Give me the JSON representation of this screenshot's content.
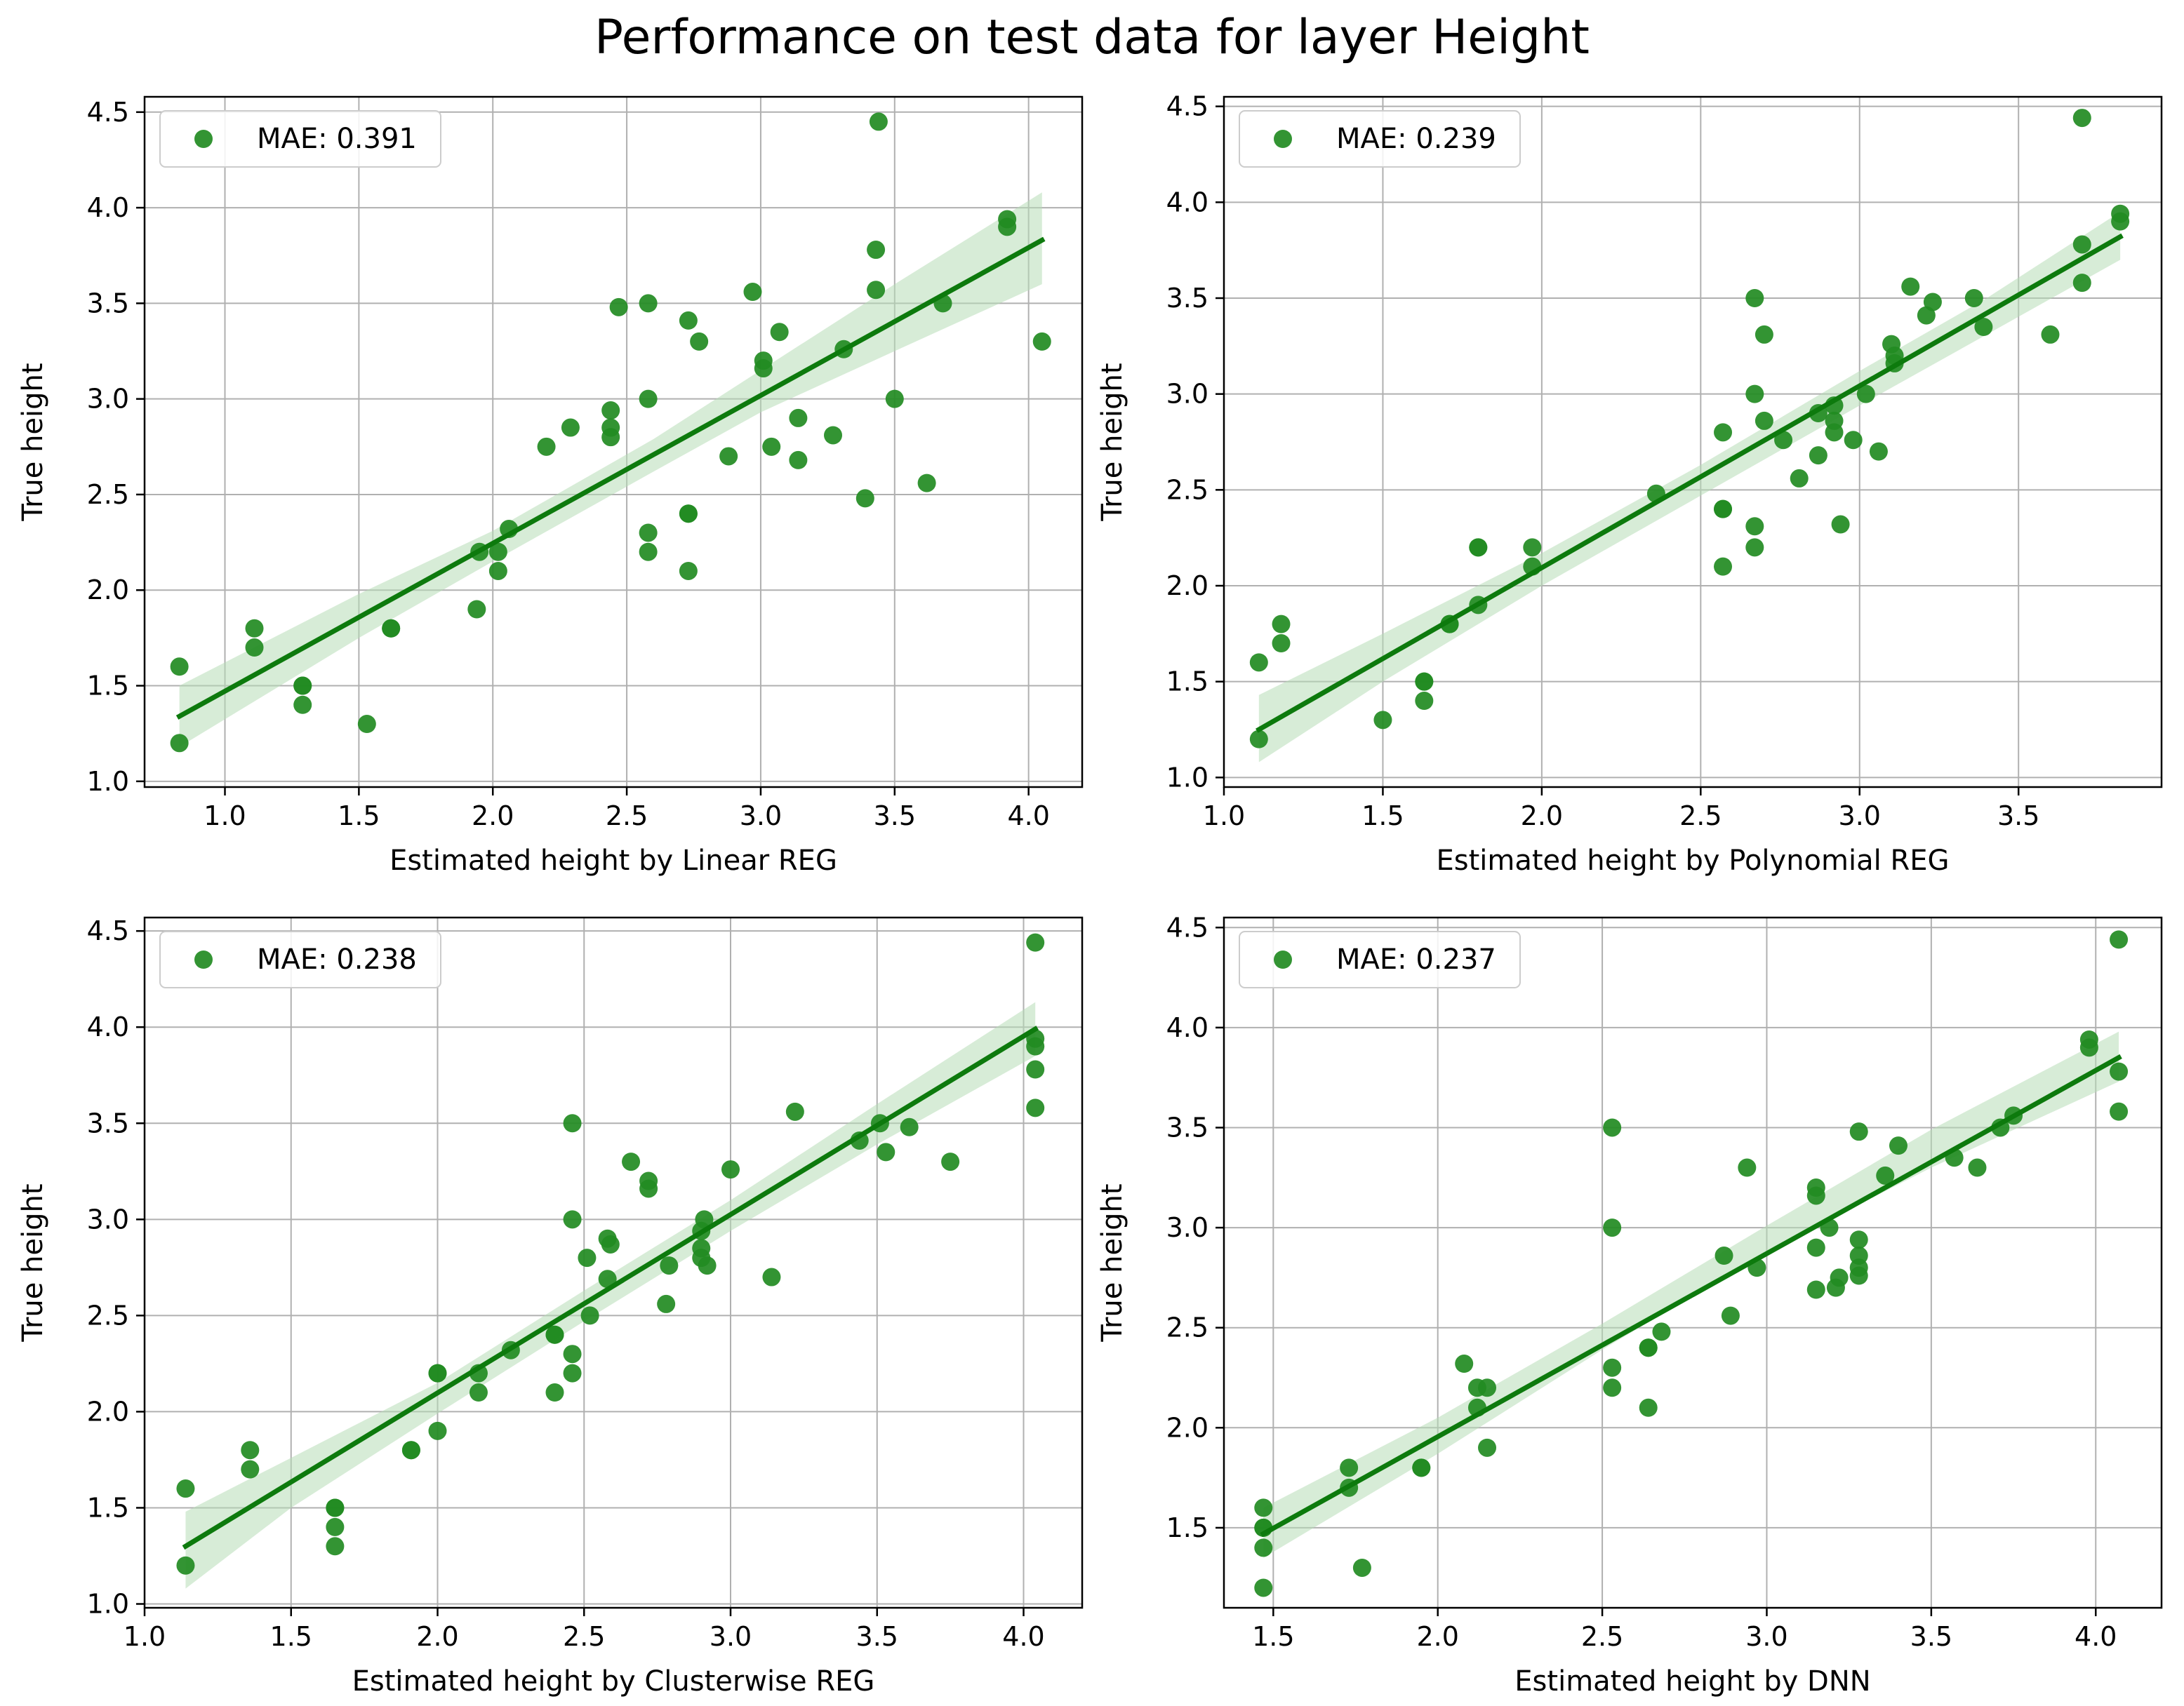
{
  "figure": {
    "title": "Performance on test data for layer Height"
  },
  "colors": {
    "points": "#228B22",
    "line": "#0d7a0d",
    "band": "#b7dcb7",
    "grid": "#b0b0b0",
    "axes": "#000000"
  },
  "chart_data": [
    {
      "type": "scatter",
      "title": "",
      "xlabel": "Estimated height by Linear REG",
      "ylabel": "True height",
      "legend": "MAE: 0.391",
      "legend_position": "top-left",
      "grid": true,
      "xlim": [
        0.7,
        4.2
      ],
      "ylim": [
        0.97,
        4.58
      ],
      "xticks": [
        "1.0",
        "1.5",
        "2.0",
        "2.5",
        "3.0",
        "3.5",
        "4.0"
      ],
      "yticks": [
        "1.0",
        "1.5",
        "2.0",
        "2.5",
        "3.0",
        "3.5",
        "4.0",
        "4.5"
      ],
      "points": [
        [
          0.83,
          1.2
        ],
        [
          0.83,
          1.6
        ],
        [
          1.11,
          1.7
        ],
        [
          1.11,
          1.8
        ],
        [
          1.29,
          1.4
        ],
        [
          1.29,
          1.5
        ],
        [
          1.29,
          1.5
        ],
        [
          1.53,
          1.3
        ],
        [
          1.62,
          1.8
        ],
        [
          1.62,
          1.8
        ],
        [
          1.94,
          1.9
        ],
        [
          1.95,
          2.2
        ],
        [
          2.02,
          2.1
        ],
        [
          2.02,
          2.2
        ],
        [
          2.06,
          2.32
        ],
        [
          2.2,
          2.75
        ],
        [
          2.29,
          2.85
        ],
        [
          2.44,
          2.8
        ],
        [
          2.44,
          2.85
        ],
        [
          2.44,
          2.94
        ],
        [
          2.47,
          3.48
        ],
        [
          2.58,
          2.2
        ],
        [
          2.58,
          2.3
        ],
        [
          2.58,
          3.0
        ],
        [
          2.58,
          3.5
        ],
        [
          2.73,
          2.1
        ],
        [
          2.73,
          2.4
        ],
        [
          2.73,
          2.4
        ],
        [
          2.73,
          3.41
        ],
        [
          2.77,
          3.3
        ],
        [
          2.88,
          2.7
        ],
        [
          2.97,
          3.56
        ],
        [
          3.01,
          3.16
        ],
        [
          3.01,
          3.2
        ],
        [
          3.04,
          2.75
        ],
        [
          3.07,
          3.35
        ],
        [
          3.14,
          2.9
        ],
        [
          3.14,
          2.68
        ],
        [
          3.27,
          2.81
        ],
        [
          3.31,
          3.26
        ],
        [
          3.39,
          2.48
        ],
        [
          3.43,
          3.78
        ],
        [
          3.43,
          3.57
        ],
        [
          3.44,
          4.45
        ],
        [
          3.5,
          3.0
        ],
        [
          3.62,
          2.56
        ],
        [
          3.68,
          3.5
        ],
        [
          3.92,
          3.94
        ],
        [
          3.92,
          3.9
        ],
        [
          4.05,
          3.3
        ]
      ],
      "fit": {
        "x": [
          0.83,
          4.05
        ],
        "y": [
          1.34,
          3.83
        ]
      },
      "ci_band": {
        "x": [
          0.83,
          1.5,
          2.0,
          2.6,
          3.0,
          3.5,
          4.05
        ],
        "lower": [
          1.18,
          1.75,
          2.15,
          2.62,
          2.93,
          3.25,
          3.6
        ],
        "upper": [
          1.5,
          1.98,
          2.31,
          2.79,
          3.15,
          3.6,
          4.08
        ]
      }
    },
    {
      "type": "scatter",
      "title": "",
      "xlabel": "Estimated height by Polynomial REG",
      "ylabel": "True height",
      "legend": "MAE: 0.239",
      "legend_position": "top-left",
      "grid": true,
      "xlim": [
        1.0,
        3.95
      ],
      "ylim": [
        0.95,
        4.55
      ],
      "xticks": [
        "1.0",
        "1.5",
        "2.0",
        "2.5",
        "3.0",
        "3.5"
      ],
      "yticks": [
        "1.0",
        "1.5",
        "2.0",
        "2.5",
        "3.0",
        "3.5",
        "4.0",
        "4.5"
      ],
      "points": [
        [
          1.11,
          1.2
        ],
        [
          1.11,
          1.6
        ],
        [
          1.18,
          1.7
        ],
        [
          1.18,
          1.8
        ],
        [
          1.5,
          1.3
        ],
        [
          1.63,
          1.4
        ],
        [
          1.63,
          1.5
        ],
        [
          1.63,
          1.5
        ],
        [
          1.71,
          1.8
        ],
        [
          1.71,
          1.8
        ],
        [
          1.8,
          1.9
        ],
        [
          1.8,
          2.2
        ],
        [
          1.8,
          2.2
        ],
        [
          1.97,
          2.1
        ],
        [
          1.97,
          2.2
        ],
        [
          2.36,
          2.48
        ],
        [
          2.57,
          2.1
        ],
        [
          2.57,
          2.4
        ],
        [
          2.57,
          2.4
        ],
        [
          2.57,
          2.8
        ],
        [
          2.67,
          2.2
        ],
        [
          2.67,
          2.31
        ],
        [
          2.67,
          3.0
        ],
        [
          2.67,
          3.5
        ],
        [
          2.7,
          2.86
        ],
        [
          2.7,
          3.31
        ],
        [
          2.76,
          2.76
        ],
        [
          2.81,
          2.56
        ],
        [
          2.87,
          2.68
        ],
        [
          2.87,
          2.9
        ],
        [
          2.92,
          2.8
        ],
        [
          2.92,
          2.86
        ],
        [
          2.92,
          2.94
        ],
        [
          2.94,
          2.32
        ],
        [
          2.98,
          2.76
        ],
        [
          3.02,
          3.0
        ],
        [
          3.06,
          2.7
        ],
        [
          3.1,
          3.26
        ],
        [
          3.11,
          3.16
        ],
        [
          3.11,
          3.2
        ],
        [
          3.16,
          3.56
        ],
        [
          3.21,
          3.41
        ],
        [
          3.23,
          3.48
        ],
        [
          3.36,
          3.5
        ],
        [
          3.39,
          3.35
        ],
        [
          3.6,
          3.31
        ],
        [
          3.7,
          3.58
        ],
        [
          3.7,
          3.78
        ],
        [
          3.7,
          4.44
        ],
        [
          3.82,
          3.9
        ],
        [
          3.82,
          3.94
        ]
      ],
      "fit": {
        "x": [
          1.11,
          3.82
        ],
        "y": [
          1.25,
          3.82
        ]
      },
      "ci_band": {
        "x": [
          1.11,
          1.5,
          2.0,
          2.5,
          3.0,
          3.4,
          3.82
        ],
        "lower": [
          1.08,
          1.5,
          2.0,
          2.47,
          2.94,
          3.31,
          3.7
        ],
        "upper": [
          1.43,
          1.75,
          2.17,
          2.63,
          3.12,
          3.5,
          3.95
        ]
      }
    },
    {
      "type": "scatter",
      "title": "",
      "xlabel": "Estimated height by Clusterwise REG",
      "ylabel": "True height",
      "legend": "MAE: 0.238",
      "legend_position": "top-left",
      "grid": true,
      "xlim": [
        1.0,
        4.2
      ],
      "ylim": [
        0.98,
        4.57
      ],
      "xticks": [
        "1.0",
        "1.5",
        "2.0",
        "2.5",
        "3.0",
        "3.5",
        "4.0"
      ],
      "yticks": [
        "1.0",
        "1.5",
        "2.0",
        "2.5",
        "3.0",
        "3.5",
        "4.0",
        "4.5"
      ],
      "points": [
        [
          1.14,
          1.2
        ],
        [
          1.14,
          1.6
        ],
        [
          1.36,
          1.7
        ],
        [
          1.36,
          1.8
        ],
        [
          1.65,
          1.3
        ],
        [
          1.65,
          1.4
        ],
        [
          1.65,
          1.5
        ],
        [
          1.65,
          1.5
        ],
        [
          1.91,
          1.8
        ],
        [
          1.91,
          1.8
        ],
        [
          2.0,
          1.9
        ],
        [
          2.0,
          2.2
        ],
        [
          2.0,
          2.2
        ],
        [
          2.14,
          2.1
        ],
        [
          2.14,
          2.2
        ],
        [
          2.25,
          2.32
        ],
        [
          2.4,
          2.1
        ],
        [
          2.4,
          2.4
        ],
        [
          2.4,
          2.4
        ],
        [
          2.46,
          2.2
        ],
        [
          2.46,
          2.3
        ],
        [
          2.46,
          3.0
        ],
        [
          2.46,
          3.5
        ],
        [
          2.51,
          2.8
        ],
        [
          2.52,
          2.5
        ],
        [
          2.58,
          2.69
        ],
        [
          2.58,
          2.9
        ],
        [
          2.59,
          2.87
        ],
        [
          2.66,
          3.3
        ],
        [
          2.72,
          3.16
        ],
        [
          2.72,
          3.2
        ],
        [
          2.78,
          2.56
        ],
        [
          2.79,
          2.76
        ],
        [
          2.9,
          2.8
        ],
        [
          2.9,
          2.85
        ],
        [
          2.9,
          2.94
        ],
        [
          2.91,
          3.0
        ],
        [
          2.92,
          2.76
        ],
        [
          3.0,
          3.26
        ],
        [
          3.14,
          2.7
        ],
        [
          3.22,
          3.56
        ],
        [
          3.44,
          3.41
        ],
        [
          3.51,
          3.5
        ],
        [
          3.53,
          3.35
        ],
        [
          3.61,
          3.48
        ],
        [
          3.75,
          3.3
        ],
        [
          4.04,
          3.58
        ],
        [
          4.04,
          3.78
        ],
        [
          4.04,
          3.9
        ],
        [
          4.04,
          3.94
        ],
        [
          4.04,
          4.44
        ]
      ],
      "fit": {
        "x": [
          1.14,
          4.04
        ],
        "y": [
          1.3,
          3.99
        ]
      },
      "ci_band": {
        "x": [
          1.14,
          1.5,
          2.0,
          2.5,
          3.0,
          3.5,
          4.04
        ],
        "lower": [
          1.08,
          1.5,
          1.99,
          2.47,
          2.94,
          3.39,
          3.85
        ],
        "upper": [
          1.48,
          1.76,
          2.15,
          2.63,
          3.1,
          3.6,
          4.13
        ]
      }
    },
    {
      "type": "scatter",
      "title": "",
      "xlabel": "Estimated height by DNN",
      "ylabel": "True height",
      "legend": "MAE: 0.237",
      "legend_position": "top-left",
      "grid": true,
      "xlim": [
        1.35,
        4.2
      ],
      "ylim": [
        1.1,
        4.55
      ],
      "xticks": [
        "1.5",
        "2.0",
        "2.5",
        "3.0",
        "3.5",
        "4.0"
      ],
      "yticks": [
        "1.5",
        "2.0",
        "2.5",
        "3.0",
        "3.5",
        "4.0",
        "4.5"
      ],
      "points": [
        [
          1.47,
          1.2
        ],
        [
          1.47,
          1.4
        ],
        [
          1.47,
          1.5
        ],
        [
          1.47,
          1.5
        ],
        [
          1.47,
          1.6
        ],
        [
          1.73,
          1.7
        ],
        [
          1.73,
          1.8
        ],
        [
          1.77,
          1.3
        ],
        [
          1.95,
          1.8
        ],
        [
          1.95,
          1.8
        ],
        [
          2.08,
          2.32
        ],
        [
          2.12,
          2.1
        ],
        [
          2.12,
          2.2
        ],
        [
          2.15,
          2.2
        ],
        [
          2.15,
          1.9
        ],
        [
          2.53,
          2.2
        ],
        [
          2.53,
          2.3
        ],
        [
          2.53,
          3.0
        ],
        [
          2.53,
          3.5
        ],
        [
          2.64,
          2.1
        ],
        [
          2.64,
          2.4
        ],
        [
          2.64,
          2.4
        ],
        [
          2.68,
          2.48
        ],
        [
          2.87,
          2.86
        ],
        [
          2.89,
          2.56
        ],
        [
          2.94,
          3.3
        ],
        [
          2.97,
          2.8
        ],
        [
          3.15,
          2.69
        ],
        [
          3.15,
          2.9
        ],
        [
          3.15,
          3.16
        ],
        [
          3.15,
          3.2
        ],
        [
          3.19,
          3.0
        ],
        [
          3.21,
          2.7
        ],
        [
          3.22,
          2.75
        ],
        [
          3.28,
          2.76
        ],
        [
          3.28,
          2.8
        ],
        [
          3.28,
          2.86
        ],
        [
          3.28,
          2.94
        ],
        [
          3.28,
          3.48
        ],
        [
          3.36,
          3.26
        ],
        [
          3.4,
          3.41
        ],
        [
          3.57,
          3.35
        ],
        [
          3.64,
          3.3
        ],
        [
          3.71,
          3.5
        ],
        [
          3.75,
          3.56
        ],
        [
          3.98,
          3.9
        ],
        [
          3.98,
          3.94
        ],
        [
          4.07,
          3.58
        ],
        [
          4.07,
          3.78
        ],
        [
          4.07,
          4.44
        ]
      ],
      "fit": {
        "x": [
          1.47,
          4.07
        ],
        "y": [
          1.47,
          3.85
        ]
      },
      "ci_band": {
        "x": [
          1.47,
          2.0,
          2.5,
          3.0,
          3.5,
          4.07
        ],
        "lower": [
          1.35,
          1.87,
          2.39,
          2.88,
          3.3,
          3.73
        ],
        "upper": [
          1.6,
          2.05,
          2.52,
          3.01,
          3.49,
          3.98
        ]
      }
    }
  ]
}
